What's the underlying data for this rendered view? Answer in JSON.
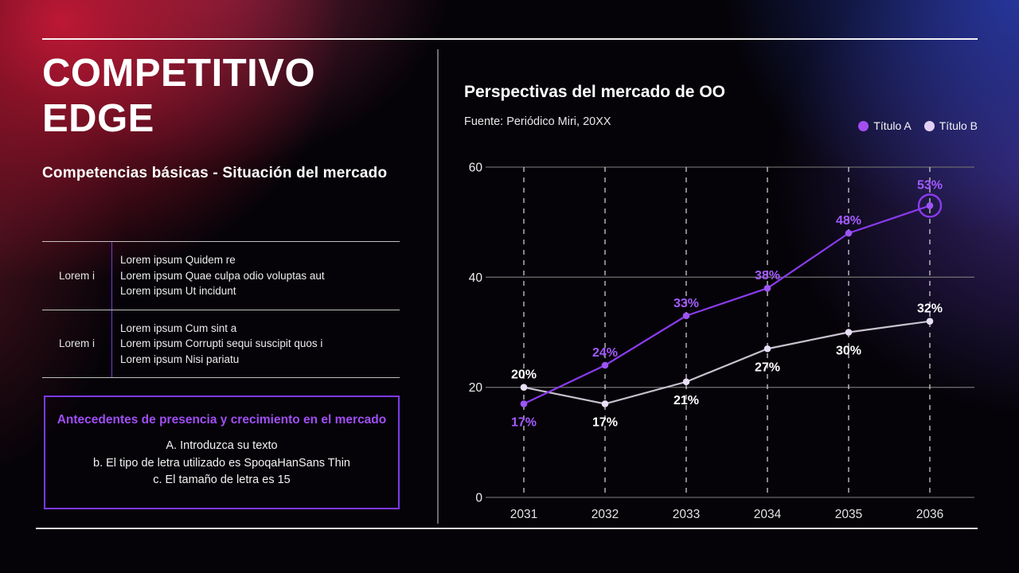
{
  "slide": {
    "title_line1": "COMPETITIVO",
    "title_line2": "EDGE",
    "subtitle": "Competencias básicas - Situación del mercado"
  },
  "info_table": {
    "rows": [
      {
        "label": "Lorem i",
        "lines": [
          "Lorem ipsum Quidem re",
          "Lorem ipsum Quae culpa odio voluptas aut",
          "Lorem ipsum Ut incidunt"
        ]
      },
      {
        "label": "Lorem i",
        "lines": [
          "Lorem ipsum Cum sint a",
          "Lorem ipsum Corrupti sequi suscipit quos i",
          "Lorem ipsum Nisi pariatu"
        ]
      }
    ]
  },
  "callout": {
    "title": "Antecedentes de presencia y crecimiento en el mercado",
    "items": [
      "A. Introduzca su texto",
      "b. El tipo de letra utilizado es SpoqaHanSans Thin",
      "c. El tamaño de letra es 15"
    ]
  },
  "chart": {
    "title": "Perspectivas del mercado de OO",
    "source": "Fuente: Periódico Miri, 20XX",
    "legend": [
      {
        "label": "Título A",
        "color": "#a44ef0"
      },
      {
        "label": "Título B",
        "color": "#e2d0f7"
      }
    ]
  },
  "chart_data": {
    "type": "line",
    "title": "Perspectivas del mercado de OO",
    "x_labels": [
      "2031",
      "2032",
      "2033",
      "2034",
      "2035",
      "2036"
    ],
    "series": [
      {
        "name": "Título A",
        "values": [
          17,
          24,
          33,
          38,
          48,
          53
        ],
        "color": "#8b3bf0",
        "point_color": "#9d55f5",
        "label_color": "#a35bff",
        "label_positions": [
          "below",
          "above",
          "above",
          "above",
          "above",
          "above"
        ],
        "highlight_last_point": true
      },
      {
        "name": "Título B",
        "values": [
          20,
          17,
          21,
          27,
          30,
          32
        ],
        "color": "#c9c2cf",
        "point_color": "#e9e0f6",
        "label_color": "#ffffff",
        "label_positions": [
          "above",
          "below",
          "below",
          "below",
          "below",
          "above"
        ],
        "highlight_last_point": false
      }
    ],
    "ylim": [
      0,
      60
    ],
    "yticks": [
      0,
      20,
      40,
      60
    ],
    "value_suffix": "%",
    "grid": {
      "horizontal": "solid",
      "vertical": "dashed"
    },
    "legend_position": "top-right"
  },
  "colors": {
    "accent_purple": "#7c3aed",
    "series_a": "#8b3bf0",
    "series_b": "#c9c2cf",
    "background_base": "#050308"
  }
}
